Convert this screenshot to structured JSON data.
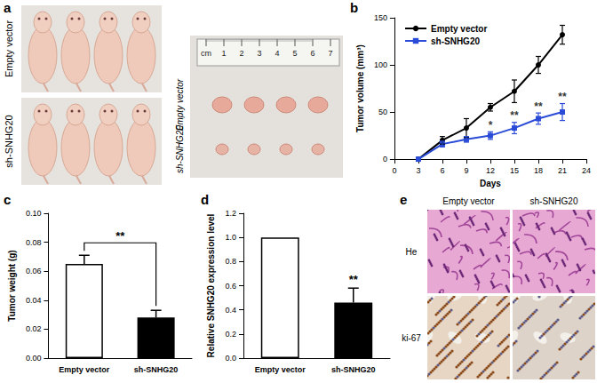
{
  "panel_labels": [
    "a",
    "b",
    "c",
    "d",
    "e"
  ],
  "panel_a": {
    "rows": [
      "Empty vector",
      "sh-SNHG20"
    ],
    "ruler": [
      "cm",
      "1",
      "2",
      "3",
      "4",
      "5",
      "6",
      "7"
    ]
  },
  "panel_e": {
    "columns": [
      "Empty vector",
      "sh-SNHG20"
    ],
    "rows": [
      "He",
      "ki-67"
    ]
  },
  "chart_data": [
    {
      "type": "line",
      "x": [
        3,
        6,
        9,
        12,
        15,
        18,
        21
      ],
      "xlim": [
        0,
        24
      ],
      "xticks": [
        0,
        3,
        6,
        9,
        12,
        15,
        18,
        21,
        24
      ],
      "ylim": [
        0,
        150
      ],
      "yticks": [
        0,
        50,
        100,
        150
      ],
      "x_label": "Days",
      "y_label": "Tumor volume (mm³)",
      "legend": "upper left",
      "series": [
        {
          "name": "Empty vector",
          "color": "#000000",
          "marker": "circle",
          "values": [
            0,
            20,
            33,
            55,
            72,
            100,
            132
          ],
          "errors": [
            0,
            4,
            10,
            4,
            12,
            9,
            10
          ]
        },
        {
          "name": "sh-SNHG20",
          "color": "#2a4bd7",
          "marker": "square",
          "values": [
            0,
            16,
            21,
            25,
            33,
            43,
            50
          ],
          "errors": [
            0,
            3,
            3,
            4,
            6,
            6,
            9
          ]
        }
      ],
      "annotations": [
        {
          "x": 12,
          "series": "sh-SNHG20",
          "text": "*"
        },
        {
          "x": 15,
          "series": "sh-SNHG20",
          "text": "**"
        },
        {
          "x": 18,
          "series": "sh-SNHG20",
          "text": "**"
        },
        {
          "x": 21,
          "series": "sh-SNHG20",
          "text": "**"
        }
      ]
    },
    {
      "type": "bar",
      "categories": [
        "Empty vector",
        "sh-SNHG20"
      ],
      "values": [
        0.065,
        0.028
      ],
      "errors": [
        0.006,
        0.005
      ],
      "colors": [
        "#ffffff",
        "#000000"
      ],
      "ylim": [
        0,
        0.1
      ],
      "yticks": [
        {
          "value": 0,
          "label": "0.00"
        },
        {
          "value": 0.02,
          "label": "0.02"
        },
        {
          "value": 0.04,
          "label": "0.04"
        },
        {
          "value": 0.06,
          "label": "0.06"
        },
        {
          "value": 0.08,
          "label": "0.08"
        },
        {
          "value": 0.1,
          "label": "0.10"
        }
      ],
      "y_label": "Tumor weight (g)",
      "annotations": [
        {
          "between": [
            "Empty vector",
            "sh-SNHG20"
          ],
          "text": "**"
        }
      ]
    },
    {
      "type": "bar",
      "categories": [
        "Empty vector",
        "sh-SNHG20"
      ],
      "values": [
        1,
        0.46
      ],
      "errors": [
        0,
        0.12
      ],
      "colors": [
        "#ffffff",
        "#000000"
      ],
      "ylim": [
        0,
        1.2
      ],
      "yticks": [
        {
          "value": 0,
          "label": "0.0"
        },
        {
          "value": 0.2,
          "label": "0.2"
        },
        {
          "value": 0.4,
          "label": "0.4"
        },
        {
          "value": 0.6,
          "label": "0.6"
        },
        {
          "value": 0.8,
          "label": "0.8"
        },
        {
          "value": 1,
          "label": "1.0"
        },
        {
          "value": 1.2,
          "label": "1.2"
        }
      ],
      "y_label": "Relative SNHG20 expression level",
      "annotations": [
        {
          "category": "sh-SNHG20",
          "text": "**"
        }
      ]
    }
  ]
}
